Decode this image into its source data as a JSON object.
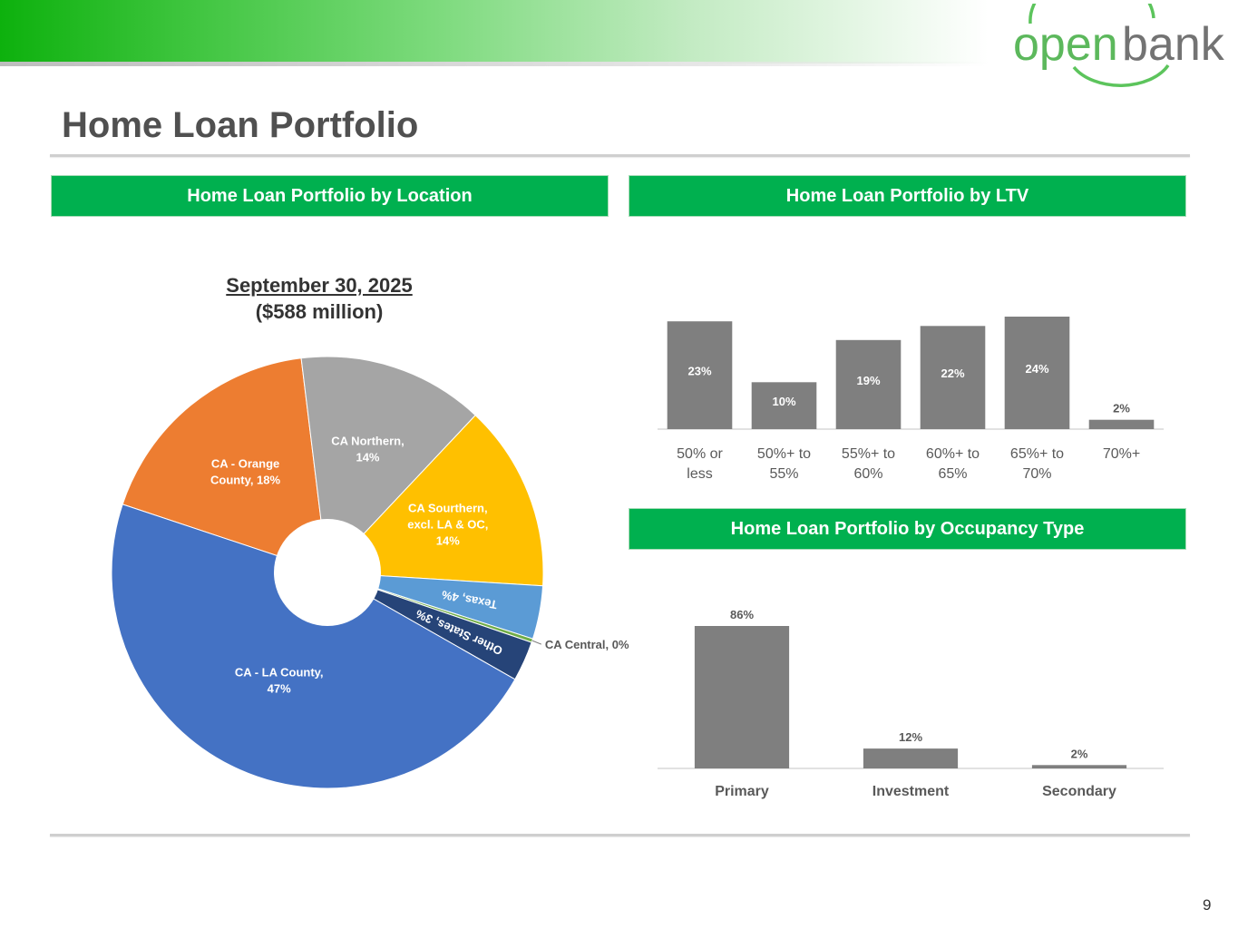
{
  "brand": {
    "logo_text_1": "open",
    "logo_text_2": "bank"
  },
  "page": {
    "title": "Home Loan Portfolio",
    "number": "9"
  },
  "sections": {
    "location": "Home Loan Portfolio by Location",
    "ltv": "Home Loan Portfolio by LTV",
    "occupancy": "Home Loan Portfolio by Occupancy Type"
  },
  "pie_heading": {
    "date": "September 30, 2025",
    "amount": "($588 million)"
  },
  "colors": {
    "brand_green": "#00b04f",
    "bar_gray": "#7f7f7f",
    "title_gray": "#505050"
  },
  "chart_data": [
    {
      "type": "pie",
      "title": "September 30, 2025 ($588 million)",
      "slices": [
        {
          "name": "CA - Orange County",
          "value": 18,
          "label": "CA - Orange County, 18%",
          "color": "#ed7d31"
        },
        {
          "name": "CA Northern",
          "value": 14,
          "label": "CA Northern, 14%",
          "color": "#a5a5a5"
        },
        {
          "name": "CA Sourthern, excl. LA & OC",
          "value": 14,
          "label": "CA Sourthern, excl. LA & OC, 14%",
          "color": "#ffc000"
        },
        {
          "name": "Texas",
          "value": 4,
          "label": "Texas, 4%",
          "color": "#5b9bd5"
        },
        {
          "name": "CA Central",
          "value": 0,
          "label": "CA Central, 0%",
          "color": "#70ad47"
        },
        {
          "name": "Other States",
          "value": 3,
          "label": "Other States, 3%",
          "color": "#264478"
        },
        {
          "name": "CA - LA County",
          "value": 47,
          "label": "CA - LA County, 47%",
          "color": "#4472c4"
        }
      ]
    },
    {
      "type": "bar",
      "categories": [
        "50% or less",
        "50%+ to 55%",
        "55%+ to 60%",
        "60%+ to 65%",
        "65%+ to 70%",
        "70%+"
      ],
      "values": [
        23,
        10,
        19,
        22,
        24,
        2
      ],
      "labels": [
        "23%",
        "10%",
        "19%",
        "22%",
        "24%",
        "2%"
      ],
      "ylim": [
        0,
        24
      ]
    },
    {
      "type": "bar",
      "categories": [
        "Primary",
        "Investment",
        "Secondary"
      ],
      "values": [
        86,
        12,
        2
      ],
      "labels": [
        "86%",
        "12%",
        "2%"
      ],
      "ylim": [
        0,
        86
      ]
    }
  ]
}
